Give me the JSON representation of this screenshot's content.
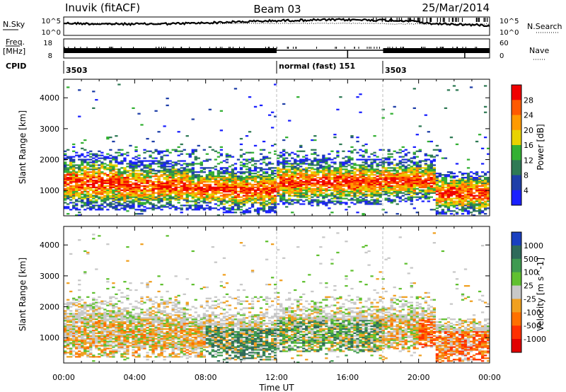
{
  "header": {
    "station": "Inuvik (fitACF)",
    "beam": "Beam 03",
    "date": "25/Mar/2014"
  },
  "noise_panel": {
    "left_label": "N.Sky",
    "right_label": "N.Search",
    "left_ticks": [
      "10^5",
      "10^0"
    ],
    "right_ticks": [
      "10^5",
      "10^0"
    ]
  },
  "freq_panel": {
    "left_label_top": "Freq.",
    "left_label_bottom": "[MHz]",
    "left_ticks": [
      "18",
      "8"
    ],
    "right_label": "Nave",
    "right_ticks": [
      "60",
      "0"
    ]
  },
  "cpid": {
    "label": "CPID",
    "segments": [
      {
        "text": "3503",
        "start_h": 0
      },
      {
        "text": "normal (fast)  151",
        "start_h": 12
      },
      {
        "text": "3503",
        "start_h": 18
      }
    ]
  },
  "chart_data": [
    {
      "type": "heatmap",
      "panel": "power",
      "ylabel": "Slant Range [km]",
      "y_ticks": [
        1000,
        2000,
        3000,
        4000
      ],
      "ylim": [
        180,
        4600
      ],
      "xlim_hours": [
        0,
        24
      ],
      "colorbar": {
        "label": "Power [dB]",
        "ticks": [
          "4",
          "8",
          "12",
          "16",
          "20",
          "24",
          "28"
        ],
        "colors": [
          "#1a20ff",
          "#1f3fa8",
          "#2f7a55",
          "#33b033",
          "#e8d200",
          "#ff9a00",
          "#ff5a00",
          "#f00000"
        ]
      }
    },
    {
      "type": "heatmap",
      "panel": "velocity",
      "ylabel": "Slant Range [km]",
      "y_ticks": [
        1000,
        2000,
        3000,
        4000
      ],
      "ylim": [
        180,
        4600
      ],
      "xlim_hours": [
        0,
        24
      ],
      "colorbar": {
        "label": "Velocity [m s^-1]",
        "ticks": [
          "1000",
          "500",
          "100",
          "25",
          "-25",
          "-100",
          "-500",
          "-1000"
        ],
        "colors": [
          "#1a40c0",
          "#2f6a5a",
          "#3f9a50",
          "#60c030",
          "#c8c8c8",
          "#f0a020",
          "#ff7000",
          "#ff3000",
          "#e00000"
        ]
      }
    }
  ],
  "x_axis": {
    "ticks": [
      "00:00",
      "04:00",
      "08:00",
      "12:00",
      "16:00",
      "20:00",
      "00:00"
    ],
    "label": "Time UT"
  }
}
